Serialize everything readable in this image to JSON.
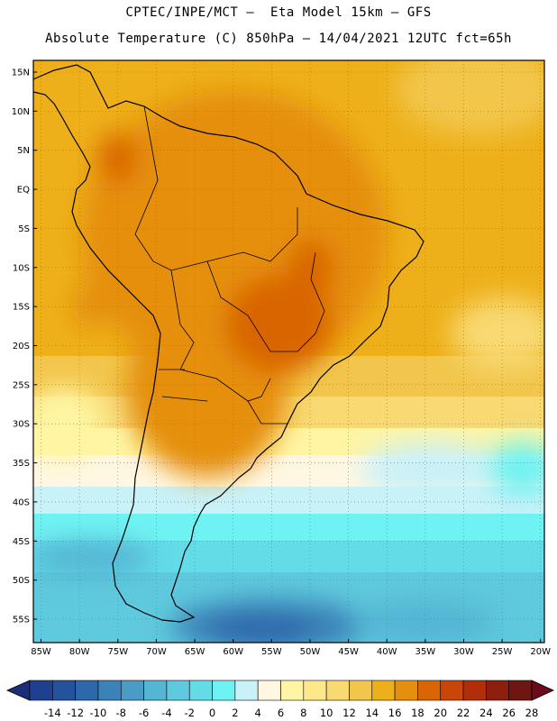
{
  "titles": {
    "line1": "CPTEC/INPE/MCT –  Eta Model 15km – GFS",
    "line2": "Absolute Temperature (C) 850hPa – 14/04/2021 12UTC fct=65h"
  },
  "map": {
    "lat_ticks": [
      "15N",
      "10N",
      "5N",
      "EQ",
      "5S",
      "10S",
      "15S",
      "20S",
      "25S",
      "30S",
      "35S",
      "40S",
      "45S",
      "50S",
      "55S"
    ],
    "lat_values": [
      15,
      10,
      5,
      0,
      -5,
      -10,
      -15,
      -20,
      -25,
      -30,
      -35,
      -40,
      -45,
      -50,
      -55
    ],
    "lon_ticks": [
      "85W",
      "80W",
      "75W",
      "70W",
      "65W",
      "60W",
      "55W",
      "50W",
      "45W",
      "40W",
      "35W",
      "30W",
      "25W",
      "20W"
    ],
    "lon_values": [
      -85,
      -80,
      -75,
      -70,
      -65,
      -60,
      -55,
      -50,
      -45,
      -40,
      -35,
      -30,
      -25,
      -20
    ],
    "lat_range": [
      -58,
      16.5
    ],
    "lon_range": [
      -86,
      -19.5
    ],
    "grid": true,
    "gridline_style": "dotted"
  },
  "colorbar": {
    "labels": [
      "-14",
      "-12",
      "-10",
      "-8",
      "-6",
      "-4",
      "-2",
      "0",
      "2",
      "4",
      "6",
      "8",
      "10",
      "12",
      "14",
      "16",
      "18",
      "20",
      "22",
      "24",
      "26",
      "28"
    ],
    "colors": [
      "#1f3f8f",
      "#24529c",
      "#2d68aa",
      "#3b82b8",
      "#4a9bc6",
      "#55b5d4",
      "#5fc9dd",
      "#63dce8",
      "#6ff2f2",
      "#c9f1f8",
      "#fff7e2",
      "#fff5a3",
      "#fde98a",
      "#f8d972",
      "#f2c64c",
      "#eeb01a",
      "#e58f10",
      "#d96506",
      "#c84708",
      "#b02e0a",
      "#8e1f0e",
      "#6e1712"
    ],
    "under_color": "#1a2e7a",
    "over_color": "#6a0a1a"
  }
}
